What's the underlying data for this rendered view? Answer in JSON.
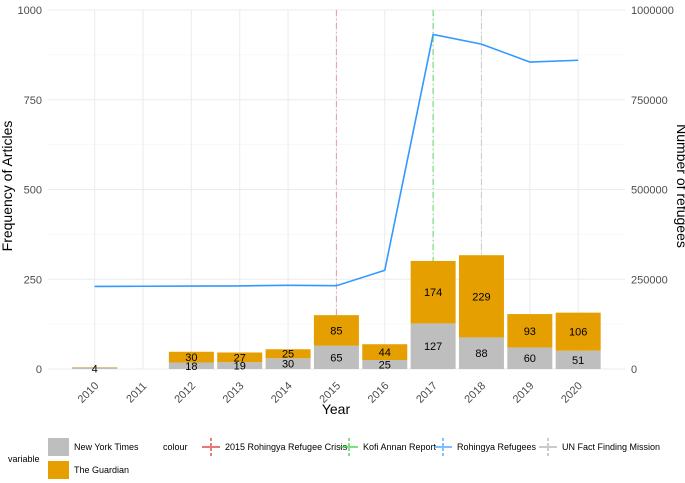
{
  "chart_data": {
    "type": "bar",
    "categories": [
      "2010",
      "2011",
      "2012",
      "2013",
      "2014",
      "2015",
      "2016",
      "2017",
      "2018",
      "2019",
      "2020"
    ],
    "series": [
      {
        "name": "New York Times",
        "values": [
          4,
          0,
          18,
          19,
          30,
          65,
          25,
          127,
          88,
          60,
          51
        ],
        "color": "#bebebe"
      },
      {
        "name": "The Guardian",
        "values": [
          1,
          0,
          30,
          27,
          25,
          85,
          44,
          174,
          229,
          93,
          106
        ],
        "color": "#e69f00"
      }
    ],
    "bar_labels": {
      "New York Times": [
        "4",
        "",
        "18",
        "19",
        "30",
        "65",
        "25",
        "127",
        "88",
        "60",
        "51"
      ],
      "The Guardian": [
        "",
        "",
        "30",
        "27",
        "25",
        "85",
        "44",
        "174",
        "229",
        "93",
        "106"
      ]
    },
    "line_series": {
      "name": "Rohingya Refugees",
      "color": "#3399ff",
      "values": [
        230000,
        230500,
        231000,
        231500,
        233000,
        232000,
        275000,
        932000,
        905000,
        855000,
        860000
      ]
    },
    "vlines": [
      {
        "name": "2015 Rohingya Refugee Crisis",
        "x": "2015",
        "color": "#e8a0a8",
        "legend_color": "#d62728"
      },
      {
        "name": "Kofi Annan Report",
        "x": "2017",
        "color": "#66dd66",
        "legend_color": "#33cc33"
      },
      {
        "name": "UN Fact Finding Mission",
        "x": "2018",
        "color": "#cccccc",
        "legend_color": "#aaaaaa"
      }
    ],
    "xlabel": "Year",
    "ylabel": "Frequency of Articles",
    "y2label": "Number of refugees",
    "ylim": [
      0,
      1000
    ],
    "y2lim": [
      0,
      1000000
    ],
    "yticks": [
      "0",
      "250",
      "500",
      "750",
      "1000"
    ],
    "y2ticks": [
      "0",
      "250000",
      "500000",
      "750000",
      "1000000"
    ],
    "legend": {
      "position": "bottom",
      "fill_title": "variable",
      "colour_title": "colour",
      "fill_items": [
        "New York Times",
        "The Guardian"
      ],
      "colour_items": [
        "2015 Rohingya Refugee Crisis",
        "Kofi Annan Report",
        "Rohingya Refugees",
        "UN Fact Finding Mission"
      ]
    },
    "grid": true
  }
}
